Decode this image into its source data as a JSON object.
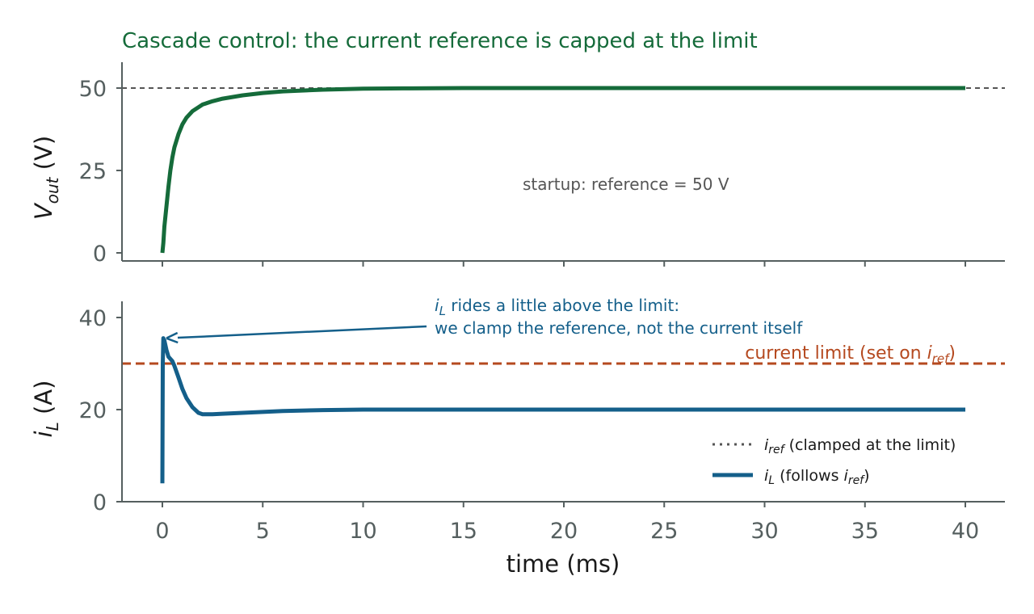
{
  "chart_data": [
    {
      "type": "line",
      "panel": "top",
      "title": "Cascade control: the current reference is capped at the limit",
      "ylabel_main": "V",
      "ylabel_sub": "out",
      "ylabel_unit": " (V)",
      "ylim": [
        -1,
        58
      ],
      "yticks": [
        0,
        25,
        50
      ],
      "xlim": [
        -2,
        42
      ],
      "reference_line": {
        "y": 50,
        "style": "dashed",
        "color": "#555555"
      },
      "annotation": "startup: reference  = 50 V",
      "series": [
        {
          "color": "#156b3a",
          "x": [
            0,
            0.05,
            0.1,
            0.2,
            0.3,
            0.4,
            0.5,
            0.6,
            0.8,
            1.0,
            1.2,
            1.5,
            2,
            2.5,
            3,
            4,
            5,
            6,
            8,
            10,
            12,
            15,
            20,
            25,
            30,
            35,
            40
          ],
          "y": [
            0,
            3,
            8,
            14,
            20,
            25,
            29,
            32,
            36,
            39,
            41,
            43,
            45,
            46,
            46.8,
            47.8,
            48.5,
            49,
            49.5,
            49.8,
            49.9,
            50,
            50,
            50,
            50,
            50,
            50
          ]
        }
      ]
    },
    {
      "type": "line",
      "panel": "bottom",
      "ylabel_main": "i",
      "ylabel_sub": "L",
      "ylabel_unit": " (A)",
      "xlabel": "time (ms)",
      "ylim": [
        0,
        44
      ],
      "yticks": [
        0,
        20,
        40
      ],
      "xlim": [
        -2,
        42
      ],
      "xticks": [
        0,
        5,
        10,
        15,
        20,
        25,
        30,
        35,
        40
      ],
      "limit_line": {
        "y": 30,
        "style": "dashed",
        "color": "#b5491f"
      },
      "limit_label_main": "current limit (set on ",
      "limit_label_var": "i",
      "limit_label_sub": "ref",
      "limit_label_close": ")",
      "callout_line1_var": "i",
      "callout_line1_sub": "L",
      "callout_line1_text": " rides a little above the limit:",
      "callout_line2": "we clamp the reference, not the current itself",
      "callout_target": {
        "x": 0.2,
        "y": 35.5
      },
      "legend": {
        "placement": "lower-right",
        "entries": [
          {
            "style": "dotted",
            "color": "#555555",
            "var": "i",
            "sub": "ref",
            "text": " (clamped at the limit)"
          },
          {
            "style": "solid",
            "color": "#145f8a",
            "var": "i",
            "sub": "L",
            "text": " (follows ",
            "var2": "i",
            "sub2": "ref",
            "close": ")"
          }
        ]
      },
      "series": [
        {
          "name_var": "i",
          "name_sub": "L",
          "color": "#145f8a",
          "x": [
            0,
            0.02,
            0.05,
            0.1,
            0.2,
            0.3,
            0.4,
            0.5,
            0.6,
            0.8,
            1.0,
            1.2,
            1.5,
            1.8,
            2.0,
            2.5,
            3,
            4,
            5,
            6,
            8,
            10,
            15,
            20,
            25,
            30,
            35,
            40
          ],
          "y": [
            4,
            30,
            35.5,
            35,
            33,
            31.5,
            31,
            30.5,
            29.5,
            27,
            24.5,
            22.5,
            20.5,
            19.3,
            19,
            19,
            19.1,
            19.3,
            19.5,
            19.7,
            19.9,
            20,
            20,
            20,
            20,
            20,
            20,
            20
          ]
        }
      ]
    }
  ]
}
